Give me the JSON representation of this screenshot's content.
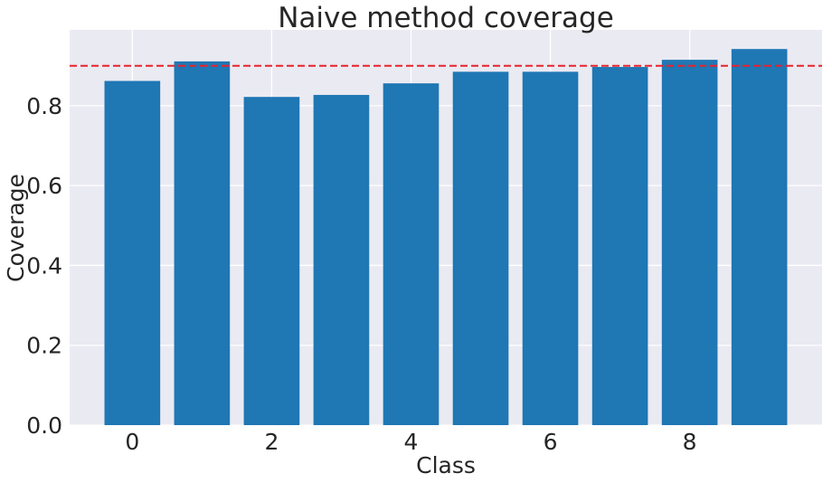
{
  "chart_data": {
    "type": "bar",
    "title": "Naive method coverage",
    "xlabel": "Class",
    "ylabel": "Coverage",
    "categories": [
      "0",
      "1",
      "2",
      "3",
      "4",
      "5",
      "6",
      "7",
      "8",
      "9"
    ],
    "values": [
      0.862,
      0.911,
      0.822,
      0.827,
      0.856,
      0.885,
      0.885,
      0.897,
      0.915,
      0.942
    ],
    "xticks": [
      0,
      2,
      4,
      6,
      8
    ],
    "yticks": [
      0.0,
      0.2,
      0.4,
      0.6,
      0.8
    ],
    "ylim": [
      0,
      0.99
    ],
    "xlim": [
      -0.9,
      9.9
    ],
    "reference_line": {
      "y": 0.9,
      "style": "dashed",
      "color": "#e8222a"
    },
    "bar_color": "#1f77b4",
    "background_color": "#eaeaf2",
    "grid": true
  }
}
